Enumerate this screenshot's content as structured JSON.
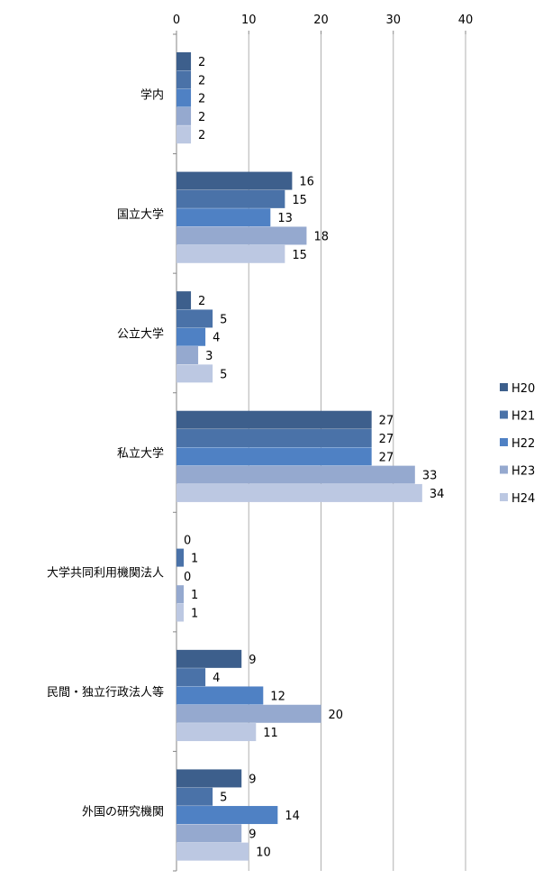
{
  "chart_data": {
    "type": "bar",
    "orientation": "horizontal",
    "categories": [
      "学内",
      "国立大学",
      "公立大学",
      "私立大学",
      "大学共同利用機関法人",
      "民間・独立行政法人等",
      "外国の研究機関"
    ],
    "series": [
      {
        "name": "H20",
        "color": "#3d5f8c",
        "values": [
          2,
          16,
          2,
          27,
          0,
          9,
          9
        ]
      },
      {
        "name": "H21",
        "color": "#4a72a8",
        "values": [
          2,
          15,
          5,
          27,
          1,
          4,
          5
        ]
      },
      {
        "name": "H22",
        "color": "#4f81c4",
        "values": [
          2,
          13,
          4,
          27,
          0,
          12,
          14
        ]
      },
      {
        "name": "H23",
        "color": "#95a9cf",
        "values": [
          2,
          18,
          3,
          33,
          1,
          20,
          9
        ]
      },
      {
        "name": "H24",
        "color": "#bcc8e2",
        "values": [
          2,
          15,
          5,
          34,
          1,
          11,
          10
        ]
      }
    ],
    "x_ticks": [
      "0",
      "10",
      "20",
      "30",
      "40"
    ],
    "xlim": [
      0,
      40
    ],
    "axis_position": "top",
    "grid": true,
    "legend_position": "right"
  }
}
